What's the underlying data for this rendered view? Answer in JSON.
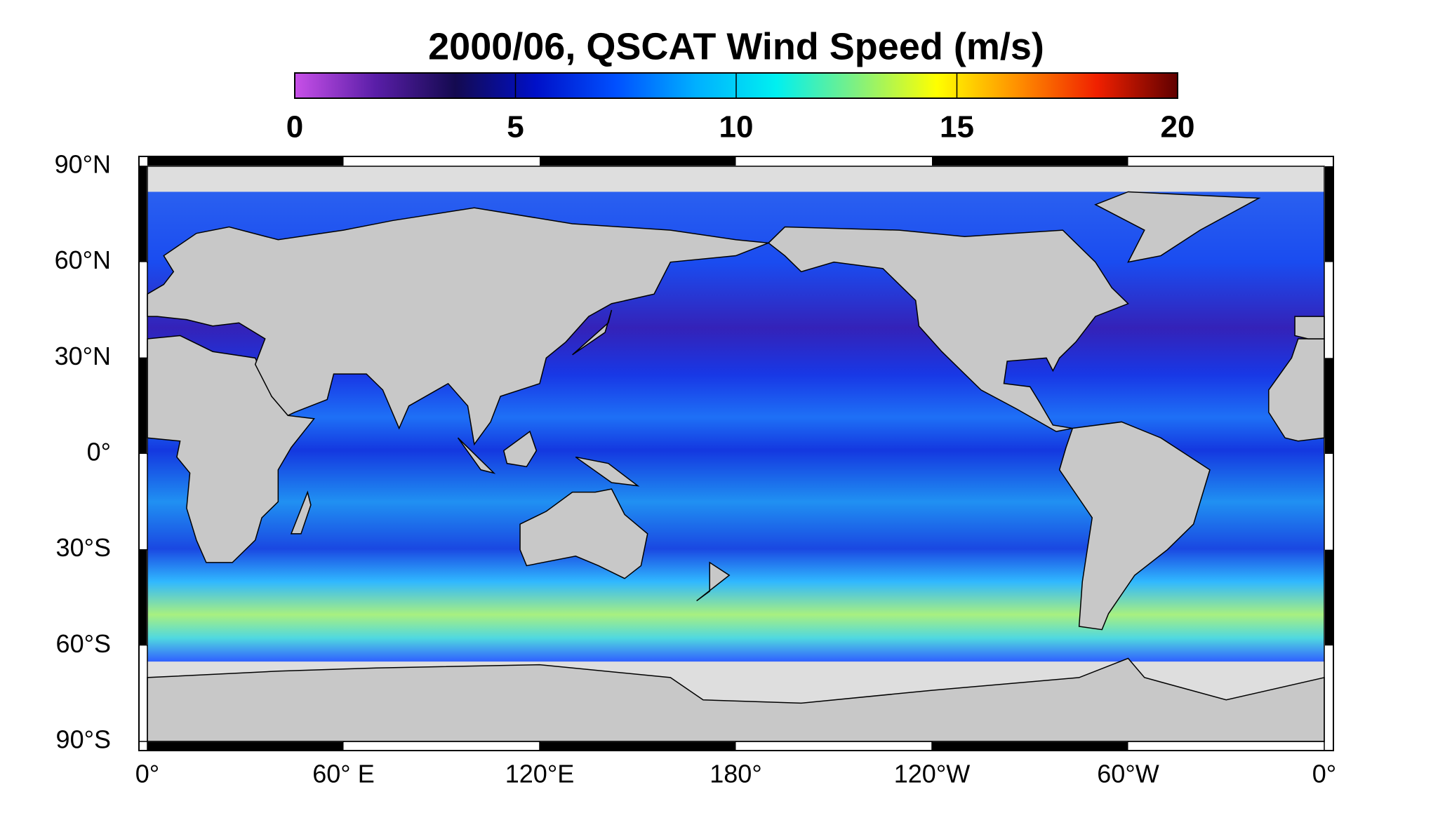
{
  "title": "2000/06,  QSCAT Wind Speed (m/s)",
  "colorbar": {
    "range": [
      0,
      20
    ],
    "ticks": [
      0,
      5,
      10,
      15,
      20
    ],
    "colors": [
      "#c850e8",
      "#5a1ea8",
      "#140a50",
      "#0010c8",
      "#0050ff",
      "#00b0ff",
      "#00f0f0",
      "#80f080",
      "#ffff00",
      "#ff9000",
      "#f02000",
      "#600000"
    ]
  },
  "map": {
    "lat_ticks": [
      {
        "value": 90,
        "label": "90°N"
      },
      {
        "value": 60,
        "label": "60°N"
      },
      {
        "value": 30,
        "label": "30°N"
      },
      {
        "value": 0,
        "label": "0°"
      },
      {
        "value": -30,
        "label": "30°S"
      },
      {
        "value": -60,
        "label": "60°S"
      },
      {
        "value": -90,
        "label": "90°S"
      }
    ],
    "lon_ticks": [
      {
        "value": 0,
        "label": "0°"
      },
      {
        "value": 60,
        "label": "60° E"
      },
      {
        "value": 120,
        "label": "120°E"
      },
      {
        "value": 180,
        "label": "180°"
      },
      {
        "value": 240,
        "label": "120°W"
      },
      {
        "value": 300,
        "label": "60°W"
      },
      {
        "value": 360,
        "label": "0°"
      }
    ]
  }
}
